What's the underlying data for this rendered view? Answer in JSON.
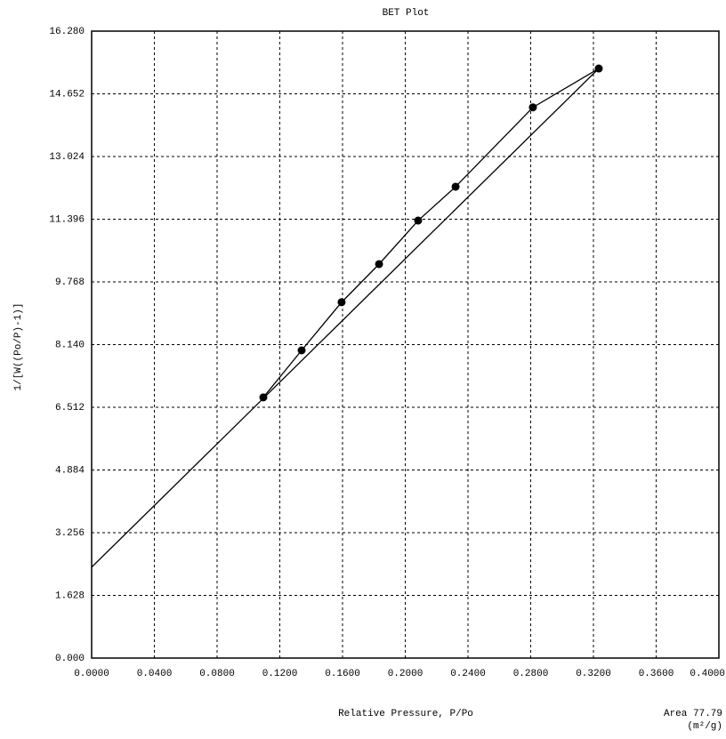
{
  "chart_data": {
    "type": "line",
    "title": "BET Plot",
    "x_label": "Relative Pressure, P/Po",
    "y_label": "1/[W((Po/P)-1)]",
    "annotations": [
      "Area 77.79",
      "(m²/g)"
    ],
    "grid": true,
    "xlim": [
      0,
      0.4
    ],
    "ylim": [
      0,
      16.28
    ],
    "xticks": [
      {
        "value": 0,
        "label": "0.0000"
      },
      {
        "value": 0.04,
        "label": "0.0400"
      },
      {
        "value": 0.08,
        "label": "0.0800"
      },
      {
        "value": 0.12,
        "label": "0.1200"
      },
      {
        "value": 0.16,
        "label": "0.1600"
      },
      {
        "value": 0.2,
        "label": "0.2000"
      },
      {
        "value": 0.24,
        "label": "0.2400"
      },
      {
        "value": 0.28,
        "label": "0.2800"
      },
      {
        "value": 0.32,
        "label": "0.3200"
      },
      {
        "value": 0.36,
        "label": "0.3600"
      },
      {
        "value": 0.4,
        "label": "0.4000"
      }
    ],
    "yticks": [
      {
        "value": 0,
        "label": "0.000"
      },
      1.628,
      3.256,
      4.884,
      6.512,
      {
        "value": 8.14,
        "label": "8.140"
      },
      9.768,
      11.396,
      13.024,
      14.652,
      {
        "value": 16.28,
        "label": "16.280"
      }
    ],
    "series": [
      {
        "color": "#000000",
        "markers": true,
        "x": [
          0.1095,
          0.1339,
          0.1594,
          0.1833,
          0.2082,
          0.2321,
          0.2814,
          0.3234
        ],
        "values": [
          6.77,
          7.99,
          9.24,
          10.23,
          11.36,
          12.24,
          14.3,
          15.31
        ]
      },
      {
        "color": "#000000",
        "markers": false,
        "x": [
          0,
          0.3234
        ],
        "values": [
          2.36,
          15.31
        ]
      }
    ]
  }
}
